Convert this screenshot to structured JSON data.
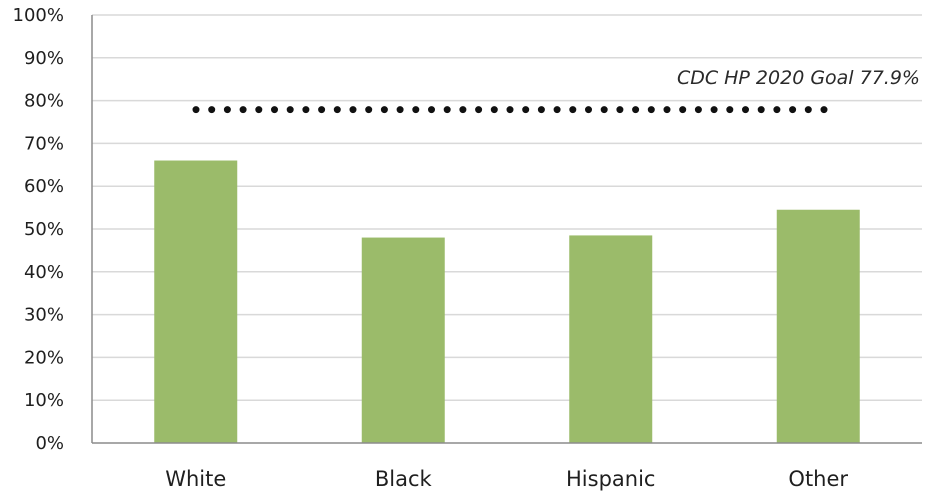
{
  "chart_data": {
    "type": "bar",
    "title": "",
    "xlabel": "",
    "ylabel": "",
    "categories": [
      "White",
      "Black",
      "Hispanic",
      "Other"
    ],
    "values": [
      66,
      48,
      48.5,
      54.5
    ],
    "y_unit": "%",
    "ylim": [
      0,
      100
    ],
    "yticks": [
      "0%",
      "10%",
      "20%",
      "30%",
      "40%",
      "50%",
      "60%",
      "70%",
      "80%",
      "90%",
      "100%"
    ],
    "grid": true,
    "legend": "none",
    "reference_line": {
      "label": "CDC HP 2020 Goal 77.9%",
      "value": 77.9,
      "style": "dotted"
    },
    "colors": {
      "bar": "#9bbb6a",
      "grid": "#d9d9d9",
      "axis": "#8c8c8c",
      "reference_line": "#111111"
    }
  }
}
